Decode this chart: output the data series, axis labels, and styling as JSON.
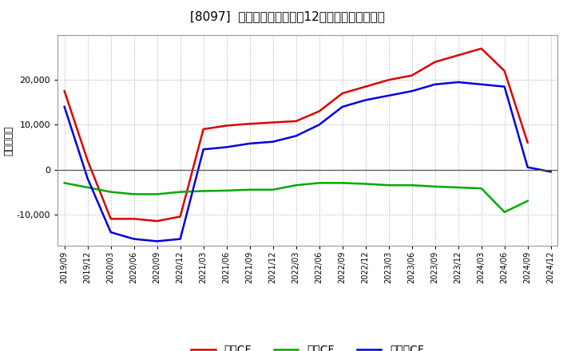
{
  "title": "[8097]  キャッシュフローの12か月移動合計の推移",
  "ylabel": "（百万円）",
  "dates": [
    "2019/09",
    "2019/12",
    "2020/03",
    "2020/06",
    "2020/09",
    "2020/12",
    "2021/03",
    "2021/06",
    "2021/09",
    "2021/12",
    "2022/03",
    "2022/06",
    "2022/09",
    "2022/12",
    "2023/03",
    "2023/06",
    "2023/09",
    "2023/12",
    "2024/03",
    "2024/06",
    "2024/09",
    "2024/12"
  ],
  "operating_cf": [
    17500,
    2000,
    -11000,
    -11000,
    -11500,
    -10500,
    9000,
    9800,
    10200,
    10500,
    10800,
    13000,
    17000,
    18500,
    20000,
    21000,
    24000,
    25500,
    27000,
    22000,
    6000,
    null
  ],
  "investing_cf": [
    -3000,
    -4000,
    -5000,
    -5500,
    -5500,
    -5000,
    -4800,
    -4700,
    -4500,
    -4500,
    -3500,
    -3000,
    -3000,
    -3200,
    -3500,
    -3500,
    -3800,
    -4000,
    -4200,
    -9500,
    -7000,
    null
  ],
  "free_cf": [
    14000,
    -2000,
    -14000,
    -15500,
    -16000,
    -15500,
    4500,
    5000,
    5800,
    6200,
    7500,
    10000,
    14000,
    15500,
    16500,
    17500,
    19000,
    19500,
    19000,
    18500,
    500,
    -500
  ],
  "operating_color": "#dd0000",
  "investing_color": "#00aa00",
  "free_color": "#0000dd",
  "bg_color": "#ffffff",
  "plot_bg_color": "#ffffff",
  "grid_color": "#aaaaaa",
  "ylim": [
    -17000,
    30000
  ],
  "yticks": [
    -10000,
    0,
    10000,
    20000
  ],
  "legend_labels": [
    "営業CF",
    "投資CF",
    "フリーCF"
  ]
}
